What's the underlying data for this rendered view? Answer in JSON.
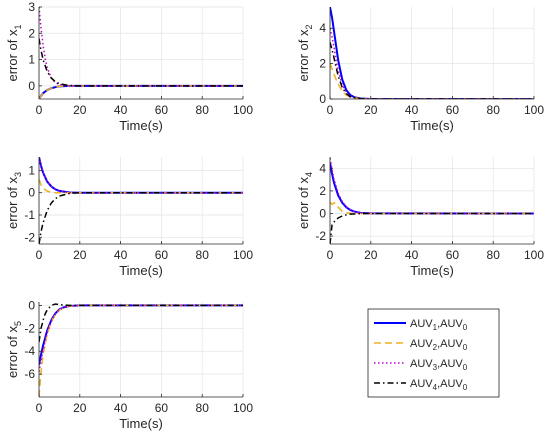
{
  "series_styles": [
    {
      "color": "#0000ff",
      "dash": "",
      "width": 2
    },
    {
      "color": "#edb120",
      "dash": "7,4",
      "width": 1.5
    },
    {
      "color": "#c000d0",
      "dash": "1.5,2.5",
      "width": 1.5
    },
    {
      "color": "#000000",
      "dash": "6,3,1.5,3",
      "width": 1.5
    }
  ],
  "legend": {
    "entries": [
      {
        "main": "AUV",
        "sub1": "1",
        "mid": ",AUV",
        "sub2": "0"
      },
      {
        "main": "AUV",
        "sub1": "2",
        "mid": ",AUV",
        "sub2": "0"
      },
      {
        "main": "AUV",
        "sub1": "3",
        "mid": ",AUV",
        "sub2": "0"
      },
      {
        "main": "AUV",
        "sub1": "4",
        "mid": ",AUV",
        "sub2": "0"
      }
    ]
  },
  "chart_data": [
    {
      "type": "line",
      "title": "",
      "xlabel": "Time(s)",
      "ylabel_main": "error of x",
      "ylabel_sub": "1",
      "xlim": [
        0,
        100
      ],
      "ylim": [
        -0.5,
        3
      ],
      "xticks": [
        0,
        20,
        40,
        60,
        80,
        100
      ],
      "yticks": [
        0,
        1,
        2,
        3
      ],
      "grid": true,
      "series": [
        {
          "x": [
            0,
            1,
            2,
            4,
            6,
            8,
            10,
            15,
            20,
            100
          ],
          "y": [
            -0.5,
            -0.38,
            -0.28,
            -0.16,
            -0.09,
            -0.05,
            -0.02,
            0,
            0,
            0
          ]
        },
        {
          "x": [
            0,
            1,
            2,
            4,
            6,
            8,
            10,
            15,
            20,
            100
          ],
          "y": [
            -0.5,
            -0.38,
            -0.28,
            -0.16,
            -0.09,
            -0.05,
            -0.02,
            0,
            0,
            0
          ]
        },
        {
          "x": [
            0,
            1,
            2,
            3,
            4,
            6,
            8,
            10,
            15,
            20,
            100
          ],
          "y": [
            3,
            2.2,
            1.55,
            1.05,
            0.7,
            0.3,
            0.12,
            0.05,
            0,
            0,
            0
          ]
        },
        {
          "x": [
            0,
            1,
            2,
            4,
            6,
            8,
            10,
            15,
            20,
            100
          ],
          "y": [
            1.8,
            1.35,
            1.0,
            0.55,
            0.3,
            0.16,
            0.08,
            0.01,
            0,
            0
          ]
        }
      ]
    },
    {
      "type": "line",
      "title": "",
      "xlabel": "Time(s)",
      "ylabel_main": "error of x",
      "ylabel_sub": "2",
      "xlim": [
        0,
        100
      ],
      "ylim": [
        0,
        5.2
      ],
      "xticks": [
        0,
        20,
        40,
        60,
        80,
        100
      ],
      "yticks": [
        0,
        2,
        4
      ],
      "grid": true,
      "series": [
        {
          "x": [
            0,
            1,
            2,
            3,
            4,
            6,
            8,
            10,
            12,
            15,
            20,
            100
          ],
          "y": [
            5.2,
            4.6,
            3.8,
            3.0,
            2.2,
            1.1,
            0.5,
            0.22,
            0.1,
            0.03,
            0,
            0
          ]
        },
        {
          "x": [
            0,
            1,
            2,
            3,
            4,
            6,
            8,
            10,
            15,
            20,
            100
          ],
          "y": [
            2.0,
            1.7,
            1.4,
            1.1,
            0.85,
            0.45,
            0.22,
            0.1,
            0.02,
            0,
            0
          ]
        },
        {
          "x": [
            0,
            1,
            2,
            3,
            4,
            6,
            8,
            10,
            15,
            20,
            100
          ],
          "y": [
            4.0,
            3.5,
            2.9,
            2.2,
            1.6,
            0.8,
            0.35,
            0.15,
            0.02,
            0,
            0
          ]
        },
        {
          "x": [
            0,
            1,
            2,
            3,
            4,
            6,
            8,
            10,
            15,
            20,
            100
          ],
          "y": [
            3.2,
            2.8,
            2.3,
            1.8,
            1.3,
            0.65,
            0.3,
            0.12,
            0.02,
            0,
            0
          ]
        }
      ]
    },
    {
      "type": "line",
      "title": "",
      "xlabel": "Time(s)",
      "ylabel_main": "error of x",
      "ylabel_sub": "3",
      "xlim": [
        0,
        100
      ],
      "ylim": [
        -2.3,
        1.6
      ],
      "xticks": [
        0,
        20,
        40,
        60,
        80,
        100
      ],
      "yticks": [
        -2,
        -1,
        0,
        1
      ],
      "grid": true,
      "series": [
        {
          "x": [
            0,
            1,
            2,
            4,
            6,
            8,
            10,
            15,
            20,
            100
          ],
          "y": [
            1.6,
            1.2,
            0.9,
            0.5,
            0.28,
            0.15,
            0.08,
            0.01,
            0,
            0
          ]
        },
        {
          "x": [
            0,
            1,
            2,
            4,
            6,
            8,
            10,
            15,
            100
          ],
          "y": [
            0.6,
            0.35,
            0.2,
            0.07,
            0.02,
            0,
            0,
            0,
            0
          ]
        },
        {
          "x": [
            0,
            1,
            2,
            4,
            6,
            8,
            10,
            15,
            20,
            100
          ],
          "y": [
            1.6,
            1.2,
            0.9,
            0.5,
            0.28,
            0.15,
            0.08,
            0.01,
            0,
            0
          ]
        },
        {
          "x": [
            0,
            1,
            2,
            4,
            6,
            8,
            10,
            15,
            20,
            100
          ],
          "y": [
            -2.3,
            -1.75,
            -1.35,
            -0.8,
            -0.47,
            -0.27,
            -0.15,
            -0.03,
            0,
            0
          ]
        }
      ]
    },
    {
      "type": "line",
      "title": "",
      "xlabel": "Time(s)",
      "ylabel_main": "error of x",
      "ylabel_sub": "4",
      "xlim": [
        0,
        100
      ],
      "ylim": [
        -2.7,
        5
      ],
      "xticks": [
        0,
        20,
        40,
        60,
        80,
        100
      ],
      "yticks": [
        -2,
        0,
        2,
        4
      ],
      "grid": true,
      "series": [
        {
          "x": [
            0,
            1,
            2,
            4,
            6,
            8,
            10,
            12,
            15,
            20,
            100
          ],
          "y": [
            4.5,
            3.5,
            2.7,
            1.6,
            0.95,
            0.55,
            0.3,
            0.17,
            0.06,
            0.01,
            0
          ]
        },
        {
          "x": [
            0,
            1,
            2,
            3,
            4,
            6,
            8,
            10,
            15,
            100
          ],
          "y": [
            1.0,
            0.8,
            0.95,
            0.85,
            0.55,
            0.2,
            0.06,
            0.02,
            0,
            0
          ]
        },
        {
          "x": [
            0,
            1,
            2,
            4,
            6,
            8,
            10,
            12,
            15,
            20,
            100
          ],
          "y": [
            4.9,
            3.9,
            3.0,
            1.8,
            1.05,
            0.6,
            0.33,
            0.18,
            0.06,
            0.01,
            0
          ]
        },
        {
          "x": [
            0,
            1,
            2,
            3,
            4,
            6,
            8,
            10,
            15,
            20,
            100
          ],
          "y": [
            -2.7,
            -1.0,
            -0.75,
            -0.55,
            -0.4,
            -0.22,
            -0.12,
            -0.06,
            -0.01,
            0,
            0
          ]
        }
      ]
    },
    {
      "type": "line",
      "title": "",
      "xlabel": "Time(s)",
      "ylabel_main": "error of x",
      "ylabel_sub": "5",
      "xlim": [
        0,
        100
      ],
      "ylim": [
        -8,
        0.3
      ],
      "xticks": [
        0,
        20,
        40,
        60,
        80,
        100
      ],
      "yticks": [
        -6,
        -4,
        -2,
        0
      ],
      "grid": true,
      "series": [
        {
          "x": [
            0,
            1,
            2,
            4,
            6,
            8,
            10,
            12,
            15,
            20,
            100
          ],
          "y": [
            -5.2,
            -4.3,
            -3.5,
            -2.2,
            -1.3,
            -0.7,
            -0.35,
            -0.17,
            -0.05,
            0,
            0
          ]
        },
        {
          "x": [
            0,
            1,
            2,
            4,
            6,
            8,
            10,
            12,
            15,
            20,
            100
          ],
          "y": [
            -8.0,
            -5.8,
            -4.3,
            -2.5,
            -1.45,
            -0.8,
            -0.42,
            -0.2,
            -0.06,
            0,
            0
          ]
        },
        {
          "x": [
            0,
            1,
            2,
            4,
            6,
            8,
            10,
            12,
            15,
            20,
            100
          ],
          "y": [
            -5.8,
            -4.8,
            -3.9,
            -2.4,
            -1.4,
            -0.75,
            -0.38,
            -0.18,
            -0.05,
            0,
            0
          ]
        },
        {
          "x": [
            0,
            1,
            2,
            3,
            4,
            6,
            8,
            10,
            12,
            15,
            20,
            100
          ],
          "y": [
            -3.2,
            -2.0,
            -1.3,
            -0.75,
            -0.4,
            0.0,
            0.12,
            0.08,
            0.03,
            0.01,
            0,
            0
          ]
        }
      ]
    }
  ]
}
